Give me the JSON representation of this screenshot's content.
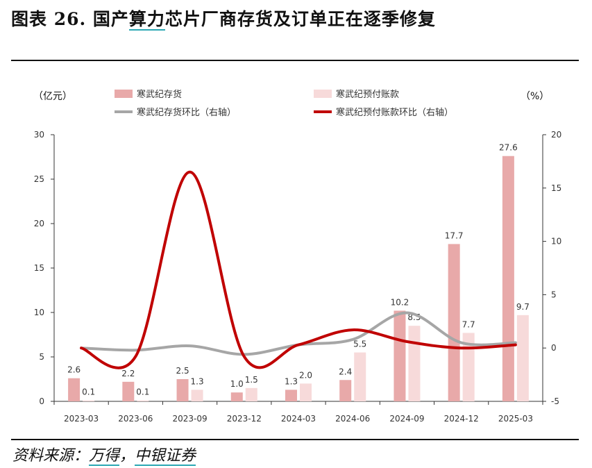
{
  "header": {
    "title_prefix": "图表 26. 国产",
    "title_underlined": "算力",
    "title_suffix": "芯片厂商存货及订单正在逐季修复"
  },
  "footer": {
    "source_prefix": "资料来源：",
    "source_a": "万得",
    "source_sep": "，",
    "source_b": "中银证券"
  },
  "units": {
    "left": "（亿元）",
    "right": "（%）"
  },
  "colors": {
    "inventory_bar": "#e8a9a9",
    "prepayment_bar": "#f7dada",
    "inventory_line": "#a6a6a6",
    "prepayment_line": "#c00000",
    "axis": "#333333"
  },
  "chart_data": {
    "type": "bar",
    "categories": [
      "2023-03",
      "2023-06",
      "2023-09",
      "2023-12",
      "2024-03",
      "2024-06",
      "2024-09",
      "2024-12",
      "2025-03"
    ],
    "series": [
      {
        "name": "寒武纪存货",
        "kind": "bar",
        "axis": "left",
        "values": [
          2.6,
          2.2,
          2.5,
          1.0,
          1.3,
          2.4,
          10.2,
          17.7,
          27.6
        ]
      },
      {
        "name": "寒武纪预付账款",
        "kind": "bar",
        "axis": "left",
        "values": [
          0.1,
          0.1,
          1.3,
          1.5,
          2.0,
          5.5,
          8.5,
          7.7,
          9.7
        ]
      },
      {
        "name": "寒武纪存货环比（右轴）",
        "kind": "line",
        "axis": "right",
        "values": [
          0.0,
          -0.2,
          0.2,
          -0.6,
          0.3,
          0.8,
          3.3,
          0.5,
          0.5
        ]
      },
      {
        "name": "寒武纪预付账款环比（右轴）",
        "kind": "line",
        "axis": "right",
        "values": [
          0.0,
          -0.8,
          16.5,
          -0.8,
          0.3,
          1.7,
          0.6,
          0.0,
          0.3
        ]
      }
    ],
    "ylim_left": [
      0,
      30
    ],
    "yticks_left": [
      0,
      5,
      10,
      15,
      20,
      25,
      30
    ],
    "ylim_right": [
      -5,
      20
    ],
    "yticks_right": [
      -5,
      0,
      5,
      10,
      15,
      20
    ],
    "grid": false,
    "legend": "top"
  }
}
